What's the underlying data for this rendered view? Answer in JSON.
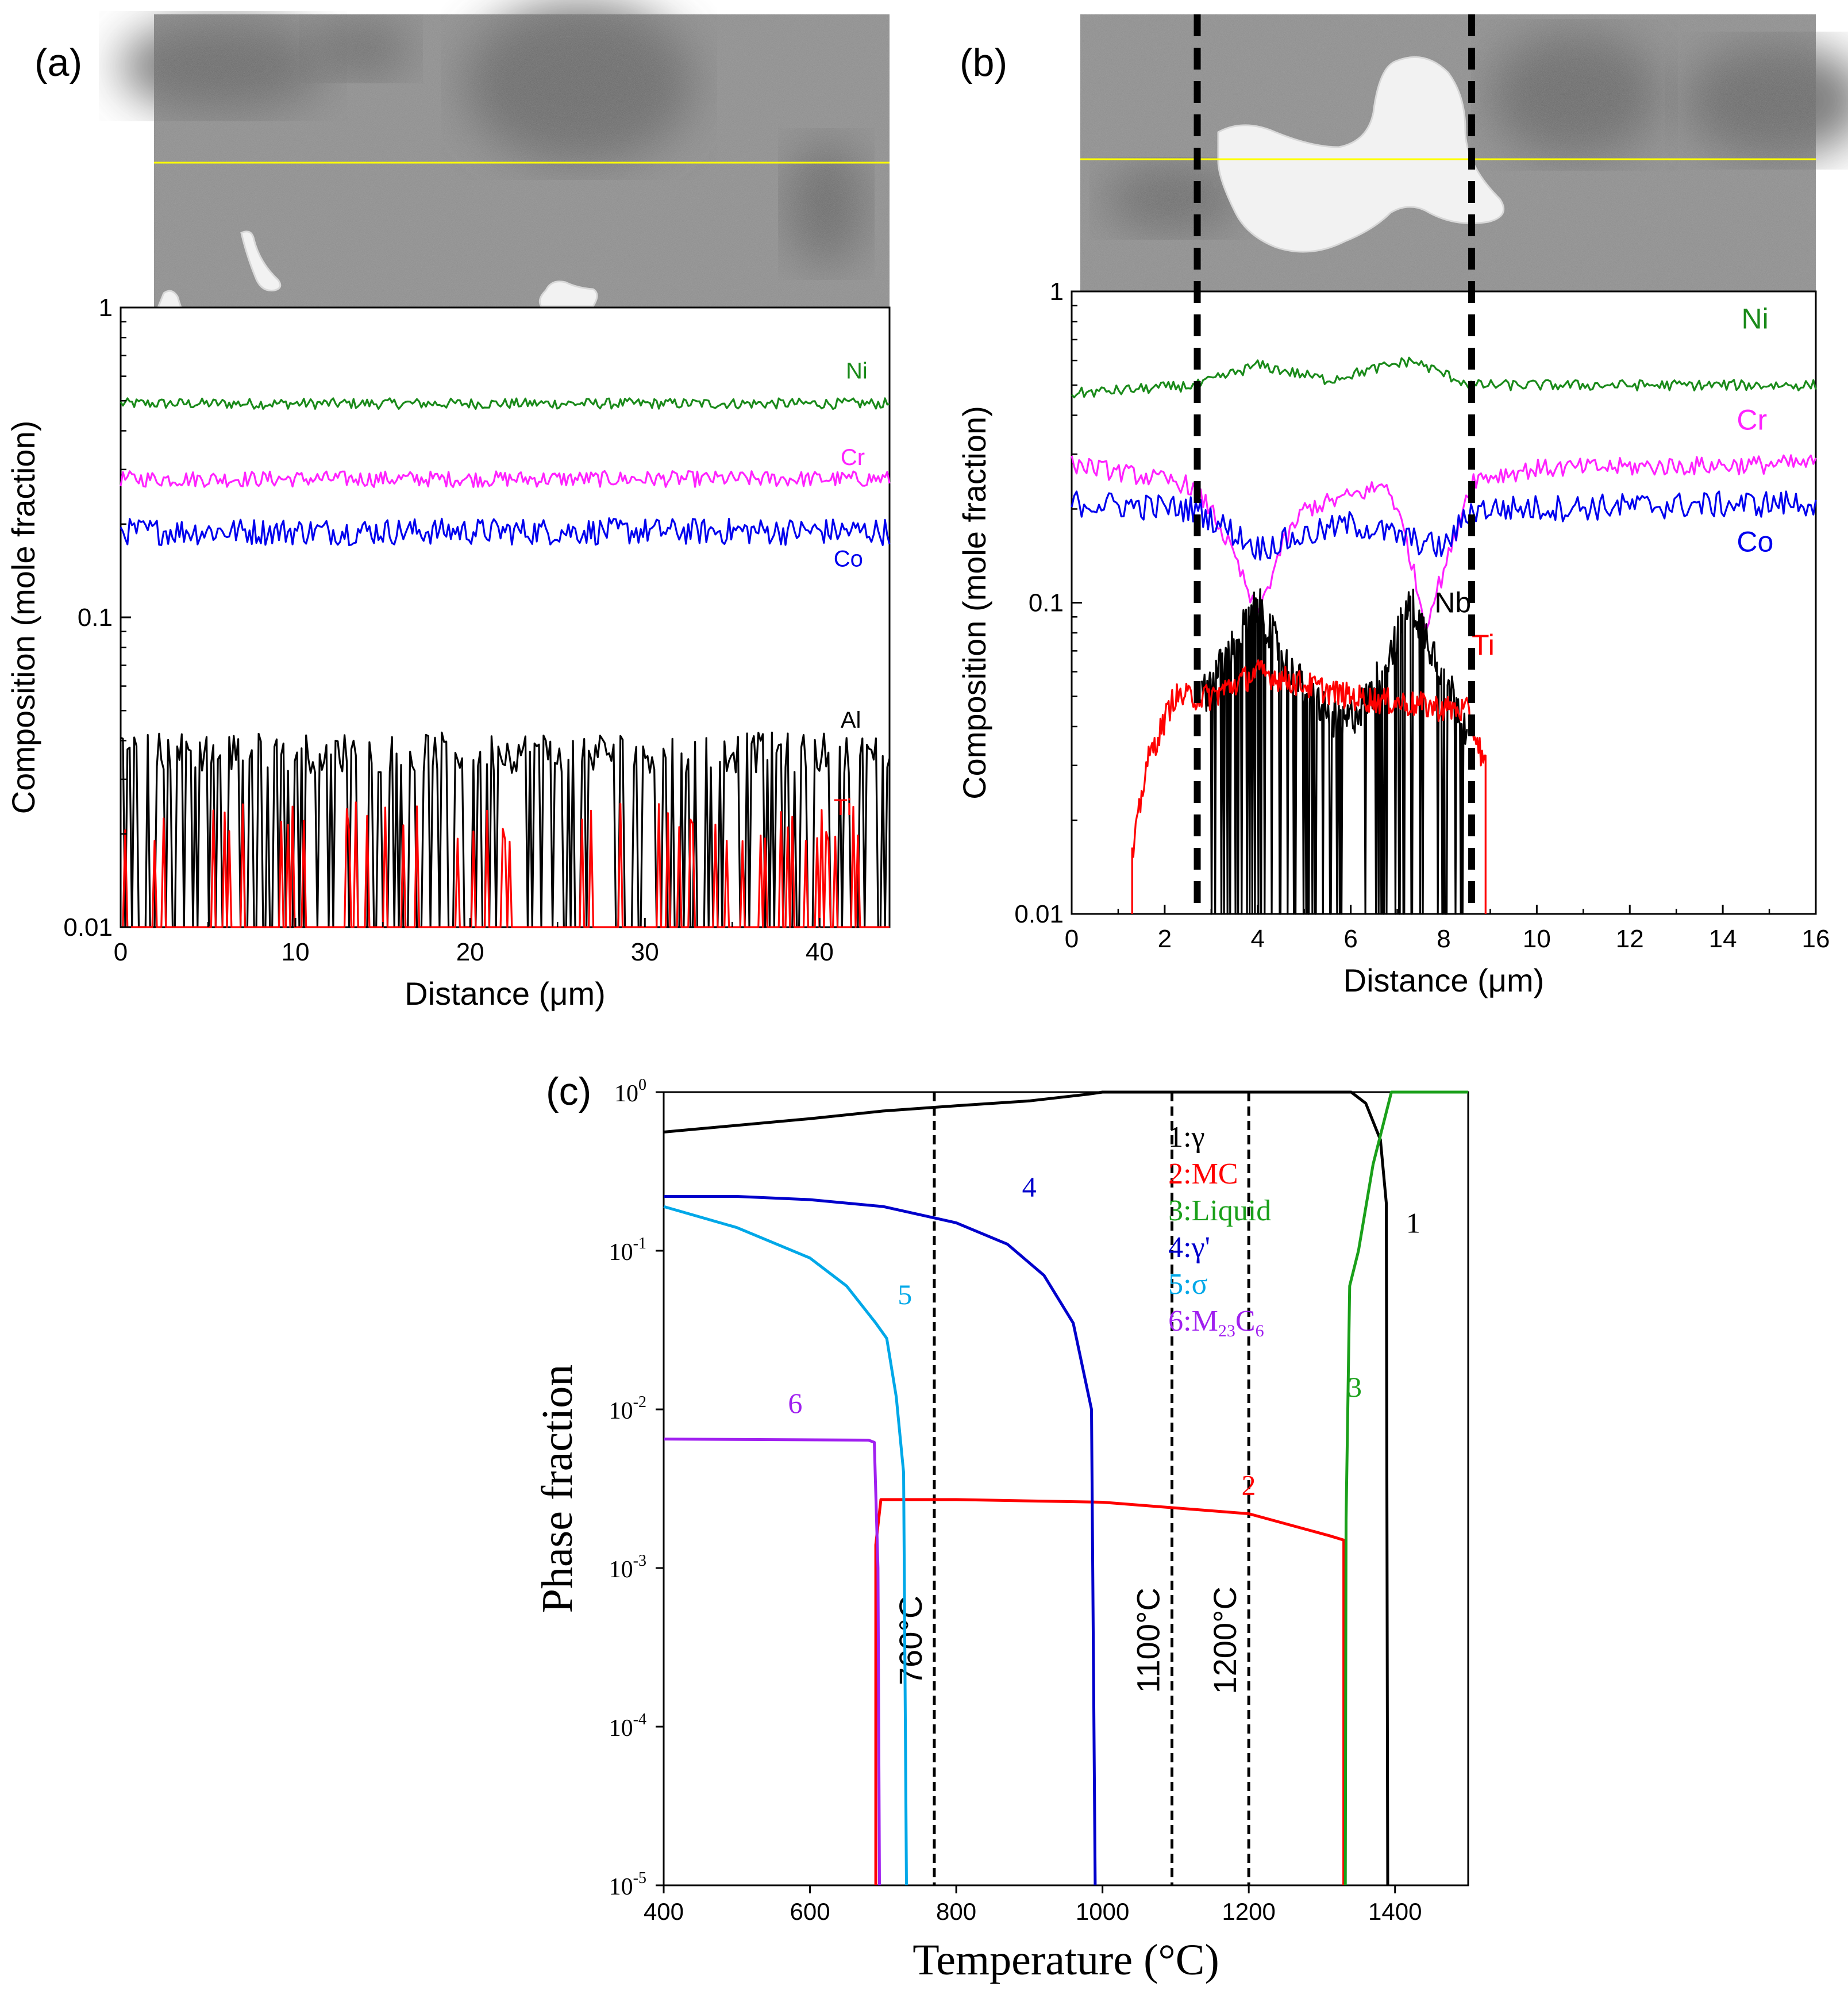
{
  "figure": {
    "panels": [
      "(a)",
      "(b)",
      "(c)"
    ]
  },
  "colors": {
    "Ni": "#1a8a1a",
    "Cr": "#ff22ff",
    "Co": "#0000ee",
    "Al": "#000000",
    "Nb": "#000000",
    "Ti": "#ff0000",
    "gamma": "#000000",
    "MC": "#ff0000",
    "Liquid": "#1aa01a",
    "gamma_prime": "#0000cc",
    "sigma": "#00a8e8",
    "M23C6": "#a020f0",
    "micrograph_bg": "#8c8c8c",
    "scan_line": "#ffff00"
  },
  "chart_data": [
    {
      "id": "a",
      "type": "line",
      "panel_label": "(a)",
      "title": "",
      "xlabel": "Distance (μm)",
      "ylabel": "Composition (mole fraction)",
      "xlim": [
        0,
        44
      ],
      "ylim": [
        0.01,
        1
      ],
      "yscale": "log",
      "xticks": [
        0,
        10,
        20,
        30,
        40
      ],
      "yticks": [
        {
          "v": 0.01,
          "label": "0.01"
        },
        {
          "v": 0.1,
          "label": "0.1"
        },
        {
          "v": 1,
          "label": "1"
        }
      ],
      "series": [
        {
          "name": "Ni",
          "color": "Ni",
          "mean": 0.49,
          "noise": 0.04,
          "label": "Ni",
          "label_x": 41.5,
          "label_y": 0.59
        },
        {
          "name": "Cr",
          "color": "Cr",
          "mean": 0.28,
          "noise": 0.06,
          "label": "Cr",
          "label_x": 41.2,
          "label_y": 0.31
        },
        {
          "name": "Co",
          "color": "Co",
          "mean": 0.19,
          "noise": 0.1,
          "label": "Co",
          "label_x": 40.8,
          "label_y": 0.146
        },
        {
          "name": "Al",
          "color": "Al",
          "mean": 0.037,
          "noise": 0.15,
          "drop_prob": 0.42,
          "label": "Al",
          "label_x": 41.2,
          "label_y": 0.044
        },
        {
          "name": "Ti",
          "color": "Ti",
          "mean": 0.022,
          "noise": 0.15,
          "drop_prob": 0.85,
          "label": "Ti",
          "label_x": 40.8,
          "label_y": 0.023
        }
      ]
    },
    {
      "id": "b",
      "type": "line",
      "panel_label": "(b)",
      "title": "",
      "xlabel": "Distance (μm)",
      "ylabel": "Composition (mole fraction)",
      "xlim": [
        0,
        16
      ],
      "ylim": [
        0.01,
        1
      ],
      "yscale": "log",
      "xticks": [
        0,
        2,
        4,
        6,
        8,
        10,
        12,
        14,
        16
      ],
      "yticks": [
        {
          "v": 0.01,
          "label": "0.01"
        },
        {
          "v": 0.1,
          "label": "0.1"
        },
        {
          "v": 1,
          "label": "1"
        }
      ],
      "dashed_x": [
        2.7,
        8.6
      ],
      "series": [
        {
          "name": "Ni",
          "color": "Ni",
          "label": "Ni",
          "label_x": 14.4,
          "label_y": 0.76,
          "profile": [
            [
              0,
              0.47
            ],
            [
              2.7,
              0.5
            ],
            [
              4,
              0.58
            ],
            [
              5.5,
              0.52
            ],
            [
              7.3,
              0.6
            ],
            [
              8.6,
              0.5
            ],
            [
              16,
              0.5
            ]
          ],
          "noise": 0.04
        },
        {
          "name": "Cr",
          "color": "Cr",
          "label": "Cr",
          "label_x": 14.3,
          "label_y": 0.36,
          "profile": [
            [
              0,
              0.28
            ],
            [
              2.5,
              0.24
            ],
            [
              3,
              0.2
            ],
            [
              3.5,
              0.14
            ],
            [
              4,
              0.09
            ],
            [
              4.5,
              0.15
            ],
            [
              5,
              0.2
            ],
            [
              6,
              0.22
            ],
            [
              6.8,
              0.24
            ],
            [
              7.2,
              0.16
            ],
            [
              7.6,
              0.085
            ],
            [
              8.1,
              0.14
            ],
            [
              8.6,
              0.25
            ],
            [
              10,
              0.27
            ],
            [
              16,
              0.28
            ]
          ],
          "noise": 0.07
        },
        {
          "name": "Co",
          "color": "Co",
          "label": "Co",
          "label_x": 14.3,
          "label_y": 0.146,
          "profile": [
            [
              0,
              0.21
            ],
            [
              2.7,
              0.2
            ],
            [
              4,
              0.15
            ],
            [
              6,
              0.18
            ],
            [
              8,
              0.15
            ],
            [
              8.6,
              0.2
            ],
            [
              16,
              0.21
            ]
          ],
          "noise": 0.1
        },
        {
          "name": "Nb",
          "color": "Nb",
          "label": "Nb",
          "label_x": 7.8,
          "label_y": 0.093,
          "profile": [
            [
              2.8,
              0.05
            ],
            [
              3.4,
              0.07
            ],
            [
              4,
              0.1
            ],
            [
              4.7,
              0.06
            ],
            [
              5.8,
              0.04
            ],
            [
              6.4,
              0.05
            ],
            [
              7.3,
              0.1
            ],
            [
              8,
              0.06
            ],
            [
              8.5,
              0.04
            ]
          ],
          "noise": 0.15,
          "drop_prob": 0.2,
          "range": [
            2.8,
            8.5
          ]
        },
        {
          "name": "Ti",
          "color": "Ti",
          "label": "Ti",
          "label_x": 8.6,
          "label_y": 0.068,
          "profile": [
            [
              1.3,
              0.015
            ],
            [
              1.6,
              0.03
            ],
            [
              2.2,
              0.05
            ],
            [
              3,
              0.05
            ],
            [
              4,
              0.06
            ],
            [
              6,
              0.05
            ],
            [
              8.5,
              0.045
            ],
            [
              8.9,
              0.03
            ]
          ],
          "noise": 0.1,
          "range": [
            1.3,
            8.9
          ]
        }
      ]
    },
    {
      "id": "c",
      "type": "line",
      "panel_label": "(c)",
      "title": "",
      "xlabel": "Temperature (°C)",
      "ylabel": "Phase fraction",
      "xlim": [
        400,
        1500
      ],
      "ylim": [
        1e-05,
        1
      ],
      "yscale": "log",
      "xticks": [
        400,
        600,
        800,
        1000,
        1200,
        1400
      ],
      "yticks": [
        {
          "v": 1e-05,
          "base": "10",
          "exp": "-5"
        },
        {
          "v": 0.0001,
          "base": "10",
          "exp": "-4"
        },
        {
          "v": 0.001,
          "base": "10",
          "exp": "-3"
        },
        {
          "v": 0.01,
          "base": "10",
          "exp": "-2"
        },
        {
          "v": 0.1,
          "base": "10",
          "exp": "-1"
        },
        {
          "v": 1,
          "base": "10",
          "exp": "0"
        }
      ],
      "dashed_x": [
        {
          "x": 770,
          "label": "760°C",
          "label_y": 0.00035
        },
        {
          "x": 1095,
          "label": "1100°C",
          "label_y": 0.00035
        },
        {
          "x": 1200,
          "label": "1200°C",
          "label_y": 0.00035
        }
      ],
      "series": [
        {
          "name": "1: γ",
          "color": "gamma",
          "number": "1",
          "num_x": 1415,
          "num_y": 0.13,
          "points": [
            [
              400,
              0.56
            ],
            [
              600,
              0.68
            ],
            [
              700,
              0.76
            ],
            [
              800,
              0.82
            ],
            [
              900,
              0.88
            ],
            [
              980,
              0.97
            ],
            [
              1000,
              1
            ],
            [
              1340,
              1
            ],
            [
              1360,
              0.85
            ],
            [
              1380,
              0.5
            ],
            [
              1388,
              0.2
            ],
            [
              1390,
              1e-05
            ]
          ]
        },
        {
          "name": "2: MC",
          "color": "MC",
          "number": "2",
          "num_x": 1190,
          "num_y": 0.0029,
          "points": [
            [
              690,
              1e-05
            ],
            [
              690,
              0.0014
            ],
            [
              697,
              0.0027
            ],
            [
              800,
              0.0027
            ],
            [
              1000,
              0.0026
            ],
            [
              1200,
              0.0022
            ],
            [
              1310,
              0.0016
            ],
            [
              1330,
              0.0015
            ],
            [
              1330,
              1e-05
            ]
          ]
        },
        {
          "name": "3: Liquid",
          "color": "Liquid",
          "number": "3",
          "num_x": 1335,
          "num_y": 0.012,
          "points": [
            [
              1332,
              1e-05
            ],
            [
              1333,
              0.002
            ],
            [
              1338,
              0.06
            ],
            [
              1350,
              0.1
            ],
            [
              1370,
              0.35
            ],
            [
              1395,
              1
            ],
            [
              1500,
              1
            ]
          ]
        },
        {
          "name": "4: γ'",
          "color": "gamma_prime",
          "number": "4",
          "num_x": 890,
          "num_y": 0.22,
          "points": [
            [
              400,
              0.22
            ],
            [
              500,
              0.22
            ],
            [
              600,
              0.21
            ],
            [
              700,
              0.19
            ],
            [
              800,
              0.15
            ],
            [
              870,
              0.11
            ],
            [
              920,
              0.07
            ],
            [
              960,
              0.035
            ],
            [
              985,
              0.01
            ],
            [
              990,
              1e-05
            ]
          ]
        },
        {
          "name": "5: σ",
          "color": "sigma",
          "number": "5",
          "num_x": 720,
          "num_y": 0.046,
          "points": [
            [
              400,
              0.19
            ],
            [
              500,
              0.14
            ],
            [
              600,
              0.09
            ],
            [
              650,
              0.06
            ],
            [
              690,
              0.035
            ],
            [
              705,
              0.028
            ],
            [
              718,
              0.012
            ],
            [
              728,
              0.004
            ],
            [
              732,
              1e-05
            ]
          ]
        },
        {
          "name": "6: M23C6",
          "color": "M23C6",
          "number": "6",
          "num_x": 570,
          "num_y": 0.0095,
          "points": [
            [
              400,
              0.0065
            ],
            [
              680,
              0.0064
            ],
            [
              688,
              0.0062
            ],
            [
              693,
              0.001
            ],
            [
              695,
              1e-05
            ]
          ]
        }
      ],
      "legend": [
        {
          "num": "1:",
          "text": "γ",
          "color": "gamma"
        },
        {
          "num": "2:",
          "text": "MC",
          "color": "MC"
        },
        {
          "num": "3:",
          "text": "Liquid",
          "color": "Liquid"
        },
        {
          "num": "4:",
          "text": "γ'",
          "color": "gamma_prime"
        },
        {
          "num": "5:",
          "text": "σ",
          "color": "sigma"
        },
        {
          "num": "6:",
          "text": "M23C6",
          "color": "M23C6",
          "sub": [
            "23",
            "6"
          ]
        }
      ]
    }
  ]
}
